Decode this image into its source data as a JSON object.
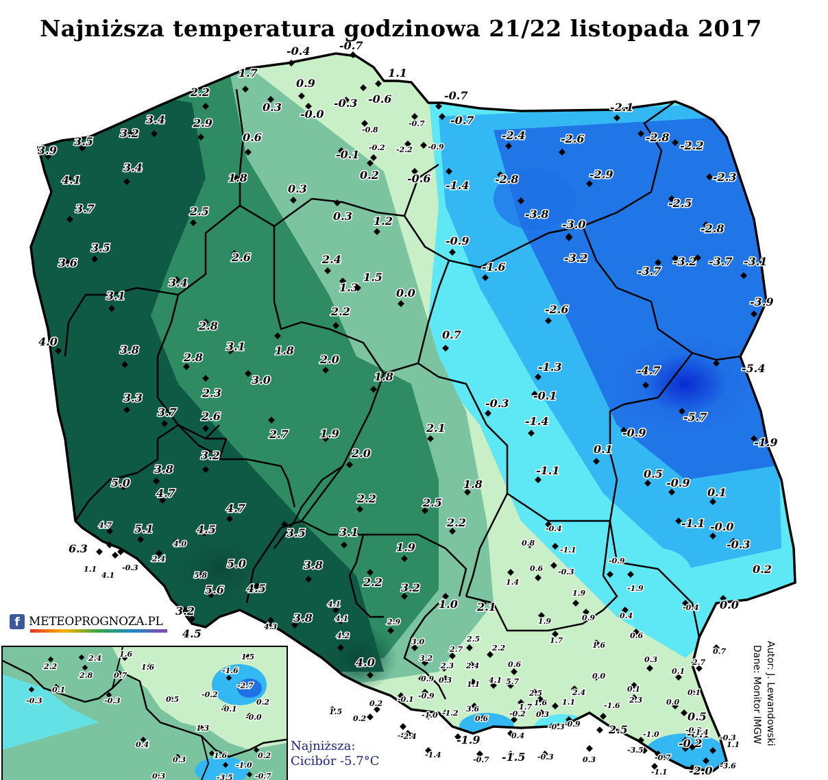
{
  "title": "Najniższa temperatura godzinowa 21/22 listopada 2017",
  "logo": {
    "brand": "METEOPROGNOZA.PL",
    "icon": "facebook-icon"
  },
  "minimum": {
    "heading": "Najniższa:",
    "value": "Cicibór -5.7°C"
  },
  "credits": {
    "author": "Autor: J. Lewandowski",
    "data": "Dane: Monitor IMGW"
  },
  "colors": {
    "warm_dark": "#0f5a45",
    "warm_mid": "#2e8b62",
    "warm_light": "#7cc4a0",
    "neutral": "#c8efc6",
    "cold_light": "#5ee8f6",
    "cold_mid": "#34b8f4",
    "cold_dark": "#1f6fe6",
    "cold_deepest": "#0a2bd0"
  },
  "stations": [
    {
      "v": "-0.4"
    },
    {
      "v": "-0.7"
    },
    {
      "v": "1.1"
    },
    {
      "v": "1.7"
    },
    {
      "v": "0.9"
    },
    {
      "v": "-0.3"
    },
    {
      "v": "-0.6"
    },
    {
      "v": "-0.7"
    },
    {
      "v": "2.2"
    },
    {
      "v": "0.3"
    },
    {
      "v": "-0.0"
    },
    {
      "v": "-0.8"
    },
    {
      "v": "-0.7"
    },
    {
      "v": "-0.7"
    },
    {
      "v": "-2.1"
    },
    {
      "v": "3.4"
    },
    {
      "v": "2.9"
    },
    {
      "v": "3.2"
    },
    {
      "v": "0.6"
    },
    {
      "v": "-0.2"
    },
    {
      "v": "-2.2"
    },
    {
      "v": "-0.9"
    },
    {
      "v": "-2.4"
    },
    {
      "v": "-2.6"
    },
    {
      "v": "-2.8"
    },
    {
      "v": "-2.2"
    },
    {
      "v": "3.9"
    },
    {
      "v": "3.5"
    },
    {
      "v": "-0.1"
    },
    {
      "v": "0.2"
    },
    {
      "v": "-0.6"
    },
    {
      "v": "-1.4"
    },
    {
      "v": "-2.8"
    },
    {
      "v": "-2.9"
    },
    {
      "v": "-2.3"
    },
    {
      "v": "4.1"
    },
    {
      "v": "3.4"
    },
    {
      "v": "1.8"
    },
    {
      "v": "0.3"
    },
    {
      "v": "3.7"
    },
    {
      "v": "2.5"
    },
    {
      "v": "0.3"
    },
    {
      "v": "1.2"
    },
    {
      "v": "-3.8"
    },
    {
      "v": "-3.0"
    },
    {
      "v": "-2.5"
    },
    {
      "v": "-2.8"
    },
    {
      "v": "3.5"
    },
    {
      "v": "2.6"
    },
    {
      "v": "-0.9"
    },
    {
      "v": "-3.2"
    },
    {
      "v": "3.6"
    },
    {
      "v": "2.4"
    },
    {
      "v": "-1.6"
    },
    {
      "v": "-3.7"
    },
    {
      "v": "-3.2"
    },
    {
      "v": "-3.7"
    },
    {
      "v": "-3.1"
    },
    {
      "v": "3.4"
    },
    {
      "v": "1.3"
    },
    {
      "v": "1.5"
    },
    {
      "v": "3.1"
    },
    {
      "v": "0.0"
    },
    {
      "v": "-3.9"
    },
    {
      "v": "2.2"
    },
    {
      "v": "-2.6"
    },
    {
      "v": "2.8"
    },
    {
      "v": "4.0"
    },
    {
      "v": "0.7"
    },
    {
      "v": "3.8"
    },
    {
      "v": "3.1"
    },
    {
      "v": "1.8"
    },
    {
      "v": "2.8"
    },
    {
      "v": "2.0"
    },
    {
      "v": "-1.3"
    },
    {
      "v": "-4.7"
    },
    {
      "v": "-5.4"
    },
    {
      "v": "3.0"
    },
    {
      "v": "1.8"
    },
    {
      "v": "2.3"
    },
    {
      "v": "-0.1"
    },
    {
      "v": "3.3"
    },
    {
      "v": "-0.3"
    },
    {
      "v": "3.7"
    },
    {
      "v": "2.6"
    },
    {
      "v": "-1.4"
    },
    {
      "v": "-5.7"
    },
    {
      "v": "2.7"
    },
    {
      "v": "1.9"
    },
    {
      "v": "2.1"
    },
    {
      "v": "-0.9"
    },
    {
      "v": "-1.9"
    },
    {
      "v": "3.2"
    },
    {
      "v": "2.0"
    },
    {
      "v": "0.1"
    },
    {
      "v": "3.8"
    },
    {
      "v": "-1.1"
    },
    {
      "v": "0.5"
    },
    {
      "v": "-0.9"
    },
    {
      "v": "5.0"
    },
    {
      "v": "1.8"
    },
    {
      "v": "0.1"
    },
    {
      "v": "4.7"
    },
    {
      "v": "2.2"
    },
    {
      "v": "2.5"
    },
    {
      "v": "4.7"
    },
    {
      "v": "-0.4"
    },
    {
      "v": "-1.1"
    },
    {
      "v": "-0.0"
    },
    {
      "v": "5.1"
    },
    {
      "v": "4.5"
    },
    {
      "v": "3.5"
    },
    {
      "v": "3.1"
    },
    {
      "v": "2.2"
    },
    {
      "v": "0.8"
    },
    {
      "v": "-1.1"
    },
    {
      "v": "-0.3"
    },
    {
      "v": "4.7"
    },
    {
      "v": "6.3"
    },
    {
      "v": "4.0"
    },
    {
      "v": "1.9"
    },
    {
      "v": "0.6"
    },
    {
      "v": "-0.3"
    },
    {
      "v": "-0.9"
    },
    {
      "v": "0.2"
    },
    {
      "v": "1.1"
    },
    {
      "v": "-0.3"
    },
    {
      "v": "2.4"
    },
    {
      "v": "5.0"
    },
    {
      "v": "3.8"
    },
    {
      "v": "4.1"
    },
    {
      "v": "5.8"
    },
    {
      "v": "2.2"
    },
    {
      "v": "3.2"
    },
    {
      "v": "1.4"
    },
    {
      "v": "-1.9"
    },
    {
      "v": "5.6"
    },
    {
      "v": "4.5"
    },
    {
      "v": "1.9"
    },
    {
      "v": "1.0"
    },
    {
      "v": "2.1"
    },
    {
      "v": "-0.4"
    },
    {
      "v": "0.0"
    },
    {
      "v": "3.2"
    },
    {
      "v": "4.1"
    },
    {
      "v": "0.9"
    },
    {
      "v": "0.4"
    },
    {
      "v": "4.5"
    },
    {
      "v": "4.3"
    },
    {
      "v": "3.8"
    },
    {
      "v": "4.1"
    },
    {
      "v": "2.9"
    },
    {
      "v": "1.9"
    },
    {
      "v": "0.6"
    },
    {
      "v": "1.7"
    },
    {
      "v": "4.2"
    },
    {
      "v": "3.0"
    },
    {
      "v": "2.7"
    },
    {
      "v": "2.5"
    },
    {
      "v": "2.2"
    },
    {
      "v": "1.6"
    },
    {
      "v": "0.7"
    },
    {
      "v": "0.3"
    },
    {
      "v": "3.2"
    },
    {
      "v": "2.3"
    },
    {
      "v": "2.4"
    },
    {
      "v": "0.6"
    },
    {
      "v": "4.0"
    },
    {
      "v": "0.1"
    },
    {
      "v": "2.7"
    },
    {
      "v": "0.0"
    },
    {
      "v": "0.9"
    },
    {
      "v": "0.3"
    },
    {
      "v": "1.1"
    },
    {
      "v": "4.1"
    },
    {
      "v": "5.7"
    },
    {
      "v": "0.1"
    },
    {
      "v": "2.3"
    },
    {
      "v": "2.5"
    },
    {
      "v": "1.5"
    },
    {
      "v": "0.2"
    },
    {
      "v": "-0.1"
    },
    {
      "v": "-0.9"
    },
    {
      "v": "3.6"
    },
    {
      "v": "1.7"
    },
    {
      "v": "2.4"
    },
    {
      "v": "1.6"
    },
    {
      "v": "-1.6"
    },
    {
      "v": "1.1"
    },
    {
      "v": "0.3"
    },
    {
      "v": "-0.9"
    },
    {
      "v": "0.0"
    },
    {
      "v": "0.1"
    },
    {
      "v": "0.5"
    },
    {
      "v": "-0.1"
    },
    {
      "v": "0.2"
    },
    {
      "v": "-1.2"
    },
    {
      "v": "-0.9"
    },
    {
      "v": "-1.0"
    },
    {
      "v": "0.6"
    },
    {
      "v": "-0.2"
    },
    {
      "v": "-0.3"
    },
    {
      "v": "-0.3"
    },
    {
      "v": "0.4"
    },
    {
      "v": "-0.3"
    },
    {
      "v": "2.5"
    },
    {
      "v": "-1.0"
    },
    {
      "v": "1.1"
    },
    {
      "v": "-0.2"
    },
    {
      "v": "-1.4"
    },
    {
      "v": "-0.7"
    },
    {
      "v": "-1.5"
    },
    {
      "v": "-0.3"
    },
    {
      "v": "0.3"
    },
    {
      "v": "-3.5"
    },
    {
      "v": "-0.7"
    },
    {
      "v": "-3.6"
    },
    {
      "v": "-1.1"
    },
    {
      "v": "-2.0"
    },
    {
      "v": "-1.4"
    },
    {
      "v": "-2.4"
    },
    {
      "v": "-1.9"
    }
  ],
  "inset_stations": [
    {
      "v": "2.2"
    },
    {
      "v": "2.4"
    },
    {
      "v": "1.6"
    },
    {
      "v": "1.5"
    },
    {
      "v": "2.8"
    },
    {
      "v": "0.7"
    },
    {
      "v": "1.6"
    },
    {
      "v": "-1.6"
    },
    {
      "v": "0.1"
    },
    {
      "v": "-0.3"
    },
    {
      "v": "-0.3"
    },
    {
      "v": "-2.7"
    },
    {
      "v": "0.5"
    },
    {
      "v": "-0.2"
    },
    {
      "v": "0.2"
    },
    {
      "v": "-0.1"
    },
    {
      "v": "-0.0"
    },
    {
      "v": "1.3"
    },
    {
      "v": "0.4"
    },
    {
      "v": "0.3"
    },
    {
      "v": "1.6"
    },
    {
      "v": "0.2"
    },
    {
      "v": "-1.0"
    },
    {
      "v": "0.3"
    },
    {
      "v": "-3.5"
    },
    {
      "v": "-0.7"
    }
  ]
}
